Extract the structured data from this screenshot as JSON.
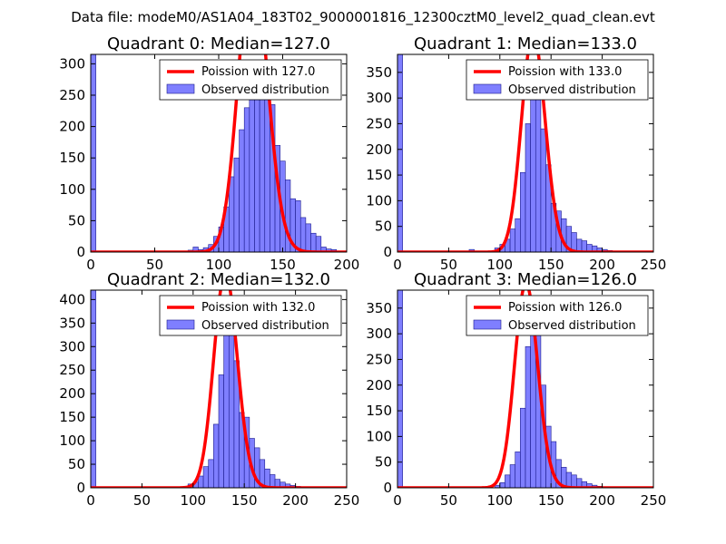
{
  "suptitle": "Data file: modeM0/AS1A04_183T02_9000001816_12300cztM0_level2_quad_clean.evt",
  "colors": {
    "bar": "#7f7fff",
    "bar_edge": "#1a1a8c",
    "poisson": "#ff0000",
    "axes": "#000000"
  },
  "chart_data": [
    {
      "type": "bar",
      "title": "Quadrant 0: Median=127.0",
      "median": 127.0,
      "xlim": [
        0,
        200
      ],
      "ylim": [
        0,
        315
      ],
      "xticks": [
        "0",
        "50",
        "100",
        "150",
        "200"
      ],
      "yticks": [
        "0",
        "50",
        "100",
        "150",
        "200",
        "250",
        "300"
      ],
      "ytick_values": [
        0,
        50,
        100,
        150,
        200,
        250,
        300
      ],
      "bin_width": 4,
      "bins": [
        [
          0,
          315
        ],
        [
          76,
          3
        ],
        [
          80,
          8
        ],
        [
          84,
          4
        ],
        [
          88,
          7
        ],
        [
          92,
          12
        ],
        [
          96,
          25
        ],
        [
          100,
          40
        ],
        [
          104,
          72
        ],
        [
          108,
          120
        ],
        [
          112,
          150
        ],
        [
          116,
          195
        ],
        [
          120,
          230
        ],
        [
          124,
          300
        ],
        [
          128,
          295
        ],
        [
          132,
          268
        ],
        [
          136,
          250
        ],
        [
          140,
          235
        ],
        [
          144,
          170
        ],
        [
          148,
          145
        ],
        [
          152,
          115
        ],
        [
          156,
          85
        ],
        [
          160,
          82
        ],
        [
          164,
          55
        ],
        [
          168,
          45
        ],
        [
          172,
          30
        ],
        [
          176,
          25
        ],
        [
          180,
          8
        ],
        [
          184,
          5
        ],
        [
          188,
          4
        ]
      ],
      "legend": {
        "poisson_label": "Poission with 127.0",
        "observed_label": "Observed distribution",
        "placement": "upper right"
      }
    },
    {
      "type": "bar",
      "title": "Quadrant 1: Median=133.0",
      "median": 133.0,
      "xlim": [
        0,
        250
      ],
      "ylim": [
        0,
        385
      ],
      "xticks": [
        "0",
        "50",
        "100",
        "150",
        "200",
        "250"
      ],
      "yticks": [
        "0",
        "50",
        "100",
        "150",
        "200",
        "250",
        "300",
        "350"
      ],
      "ytick_values": [
        0,
        50,
        100,
        150,
        200,
        250,
        300,
        350
      ],
      "bin_width": 5,
      "bins": [
        [
          0,
          385
        ],
        [
          70,
          5
        ],
        [
          95,
          8
        ],
        [
          100,
          15
        ],
        [
          105,
          25
        ],
        [
          110,
          45
        ],
        [
          115,
          65
        ],
        [
          120,
          155
        ],
        [
          125,
          250
        ],
        [
          130,
          335
        ],
        [
          135,
          345
        ],
        [
          140,
          240
        ],
        [
          145,
          170
        ],
        [
          150,
          95
        ],
        [
          155,
          80
        ],
        [
          160,
          65
        ],
        [
          165,
          50
        ],
        [
          170,
          38
        ],
        [
          175,
          25
        ],
        [
          180,
          22
        ],
        [
          185,
          15
        ],
        [
          190,
          12
        ],
        [
          195,
          8
        ],
        [
          200,
          5
        ],
        [
          205,
          3
        ]
      ],
      "legend": {
        "poisson_label": "Poission with 133.0",
        "observed_label": "Observed distribution",
        "placement": "upper right"
      }
    },
    {
      "type": "bar",
      "title": "Quadrant 2: Median=132.0",
      "median": 132.0,
      "xlim": [
        0,
        250
      ],
      "ylim": [
        0,
        420
      ],
      "xticks": [
        "0",
        "50",
        "100",
        "150",
        "200",
        "250"
      ],
      "yticks": [
        "0",
        "50",
        "100",
        "150",
        "200",
        "250",
        "300",
        "350",
        "400"
      ],
      "ytick_values": [
        0,
        50,
        100,
        150,
        200,
        250,
        300,
        350,
        400
      ],
      "bin_width": 5,
      "bins": [
        [
          0,
          420
        ],
        [
          90,
          3
        ],
        [
          95,
          8
        ],
        [
          100,
          12
        ],
        [
          105,
          25
        ],
        [
          110,
          45
        ],
        [
          115,
          60
        ],
        [
          120,
          135
        ],
        [
          125,
          240
        ],
        [
          130,
          360
        ],
        [
          135,
          375
        ],
        [
          140,
          270
        ],
        [
          145,
          160
        ],
        [
          150,
          150
        ],
        [
          155,
          105
        ],
        [
          160,
          85
        ],
        [
          165,
          60
        ],
        [
          170,
          40
        ],
        [
          175,
          28
        ],
        [
          180,
          18
        ],
        [
          185,
          12
        ],
        [
          190,
          8
        ],
        [
          195,
          5
        ],
        [
          200,
          3
        ],
        [
          205,
          2
        ]
      ],
      "legend": {
        "poisson_label": "Poission with 132.0",
        "observed_label": "Observed distribution",
        "placement": "upper right"
      }
    },
    {
      "type": "bar",
      "title": "Quadrant 3: Median=126.0",
      "median": 126.0,
      "xlim": [
        0,
        250
      ],
      "ylim": [
        0,
        385
      ],
      "xticks": [
        "0",
        "50",
        "100",
        "150",
        "200",
        "250"
      ],
      "yticks": [
        "0",
        "50",
        "100",
        "150",
        "200",
        "250",
        "300",
        "350"
      ],
      "ytick_values": [
        0,
        50,
        100,
        150,
        200,
        250,
        300,
        350
      ],
      "bin_width": 5,
      "bins": [
        [
          0,
          385
        ],
        [
          95,
          5
        ],
        [
          100,
          10
        ],
        [
          105,
          25
        ],
        [
          110,
          45
        ],
        [
          115,
          70
        ],
        [
          120,
          155
        ],
        [
          125,
          275
        ],
        [
          130,
          345
        ],
        [
          135,
          320
        ],
        [
          140,
          200
        ],
        [
          145,
          120
        ],
        [
          150,
          90
        ],
        [
          155,
          55
        ],
        [
          160,
          40
        ],
        [
          165,
          30
        ],
        [
          170,
          25
        ],
        [
          175,
          18
        ],
        [
          180,
          12
        ],
        [
          185,
          8
        ],
        [
          190,
          5
        ],
        [
          195,
          3
        ],
        [
          200,
          2
        ]
      ],
      "legend": {
        "poisson_label": "Poission with 126.0",
        "observed_label": "Observed distribution",
        "placement": "upper right"
      }
    }
  ]
}
